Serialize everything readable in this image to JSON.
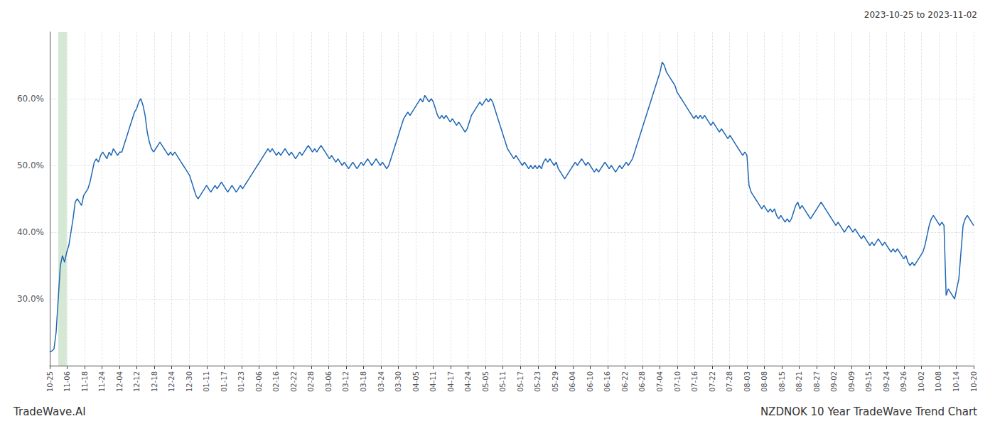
{
  "chart_data": {
    "type": "line",
    "title": "NZDNOK 10 Year TradeWave Trend Chart",
    "subtitle": "2023-10-25 to 2023-11-02",
    "annotations": [
      {
        "text": "TradeWave.AI"
      }
    ],
    "color": "#2068b4",
    "grid": true,
    "span": {
      "x": [
        4,
        8
      ],
      "color": "#d4e8d4"
    },
    "xlim": [
      0,
      436
    ],
    "xticks": [
      {
        "value": 0,
        "label": "10-25"
      },
      {
        "value": 8.2264,
        "label": "11-06"
      },
      {
        "value": 16.4528,
        "label": "11-18"
      },
      {
        "value": 24.6792,
        "label": "11-24"
      },
      {
        "value": 32.9057,
        "label": "12-04"
      },
      {
        "value": 41.1321,
        "label": "12-12"
      },
      {
        "value": 49.3585,
        "label": "12-18"
      },
      {
        "value": 57.5849,
        "label": "12-24"
      },
      {
        "value": 65.8113,
        "label": "12-30"
      },
      {
        "value": 74.0377,
        "label": "01-11"
      },
      {
        "value": 82.2642,
        "label": "01-17"
      },
      {
        "value": 90.4906,
        "label": "01-23"
      },
      {
        "value": 98.717,
        "label": "02-06"
      },
      {
        "value": 106.9434,
        "label": "02-16"
      },
      {
        "value": 115.1698,
        "label": "02-22"
      },
      {
        "value": 123.3962,
        "label": "02-28"
      },
      {
        "value": 131.6226,
        "label": "03-06"
      },
      {
        "value": 139.8491,
        "label": "03-12"
      },
      {
        "value": 148.0755,
        "label": "03-18"
      },
      {
        "value": 156.3019,
        "label": "03-24"
      },
      {
        "value": 164.5283,
        "label": "03-30"
      },
      {
        "value": 172.7547,
        "label": "04-05"
      },
      {
        "value": 180.9811,
        "label": "04-11"
      },
      {
        "value": 189.2075,
        "label": "04-17"
      },
      {
        "value": 197.434,
        "label": "04-24"
      },
      {
        "value": 205.6604,
        "label": "05-05"
      },
      {
        "value": 213.8868,
        "label": "05-11"
      },
      {
        "value": 222.1132,
        "label": "05-17"
      },
      {
        "value": 230.3396,
        "label": "05-23"
      },
      {
        "value": 238.566,
        "label": "05-29"
      },
      {
        "value": 246.7925,
        "label": "06-04"
      },
      {
        "value": 255.0189,
        "label": "06-10"
      },
      {
        "value": 263.2453,
        "label": "06-16"
      },
      {
        "value": 271.4717,
        "label": "06-22"
      },
      {
        "value": 279.6981,
        "label": "06-28"
      },
      {
        "value": 287.9245,
        "label": "07-04"
      },
      {
        "value": 296.1509,
        "label": "07-10"
      },
      {
        "value": 304.3774,
        "label": "07-16"
      },
      {
        "value": 312.6038,
        "label": "07-22"
      },
      {
        "value": 320.8302,
        "label": "07-28"
      },
      {
        "value": 329.0566,
        "label": "08-03"
      },
      {
        "value": 337.283,
        "label": "08-08"
      },
      {
        "value": 345.5094,
        "label": "08-15"
      },
      {
        "value": 353.7358,
        "label": "08-21"
      },
      {
        "value": 361.9623,
        "label": "08-27"
      },
      {
        "value": 370.1887,
        "label": "09-02"
      },
      {
        "value": 378.4151,
        "label": "09-09"
      },
      {
        "value": 386.6415,
        "label": "09-15"
      },
      {
        "value": 394.8679,
        "label": "09-24"
      },
      {
        "value": 403.0943,
        "label": "09-26"
      },
      {
        "value": 411.3208,
        "label": "10-02"
      },
      {
        "value": 419.5472,
        "label": "10-08"
      },
      {
        "value": 427.7736,
        "label": "10-14"
      },
      {
        "value": 436,
        "label": "10-20"
      }
    ],
    "ylim": [
      20.0,
      70.0
    ],
    "yticks": [
      {
        "value": 30.0,
        "label": "30.0%"
      },
      {
        "value": 40.0,
        "label": "40.0%"
      },
      {
        "value": 50.0,
        "label": "50.0%"
      },
      {
        "value": 60.0,
        "label": "60.0%"
      }
    ],
    "values": [
      22.0,
      22.2,
      22.5,
      25.0,
      30.0,
      35.0,
      36.5,
      35.5,
      37.0,
      38.0,
      40.0,
      42.0,
      44.5,
      45.0,
      44.5,
      44.0,
      45.5,
      46.0,
      46.5,
      47.5,
      49.0,
      50.5,
      51.0,
      50.5,
      51.5,
      52.0,
      51.5,
      51.0,
      52.0,
      51.5,
      52.5,
      52.0,
      51.5,
      52.0,
      52.0,
      53.0,
      54.0,
      55.0,
      56.0,
      57.0,
      58.0,
      58.5,
      59.5,
      60.0,
      59.0,
      57.5,
      55.0,
      53.5,
      52.5,
      52.0,
      52.5,
      53.0,
      53.5,
      53.0,
      52.5,
      52.0,
      51.5,
      52.0,
      51.5,
      52.0,
      51.5,
      51.0,
      50.5,
      50.0,
      49.5,
      49.0,
      48.5,
      47.5,
      46.5,
      45.5,
      45.0,
      45.5,
      46.0,
      46.5,
      47.0,
      46.5,
      46.0,
      46.5,
      47.0,
      46.5,
      47.0,
      47.5,
      47.0,
      46.5,
      46.0,
      46.5,
      47.0,
      46.5,
      46.0,
      46.5,
      47.0,
      46.5,
      47.0,
      47.5,
      48.0,
      48.5,
      49.0,
      49.5,
      50.0,
      50.5,
      51.0,
      51.5,
      52.0,
      52.5,
      52.0,
      52.5,
      52.0,
      51.5,
      52.0,
      51.5,
      52.0,
      52.5,
      52.0,
      51.5,
      52.0,
      51.5,
      51.0,
      51.5,
      52.0,
      51.5,
      52.0,
      52.5,
      53.0,
      52.5,
      52.0,
      52.5,
      52.0,
      52.5,
      53.0,
      52.5,
      52.0,
      51.5,
      51.0,
      51.5,
      51.0,
      50.5,
      51.0,
      50.5,
      50.0,
      50.5,
      50.0,
      49.5,
      50.0,
      50.5,
      50.0,
      49.5,
      50.0,
      50.5,
      50.0,
      50.5,
      51.0,
      50.5,
      50.0,
      50.5,
      51.0,
      50.5,
      50.0,
      50.5,
      50.0,
      49.5,
      50.0,
      51.0,
      52.0,
      53.0,
      54.0,
      55.0,
      56.0,
      57.0,
      57.5,
      58.0,
      57.5,
      58.0,
      58.5,
      59.0,
      59.5,
      60.0,
      59.5,
      60.5,
      60.0,
      59.5,
      60.0,
      59.5,
      58.5,
      57.5,
      57.0,
      57.5,
      57.0,
      57.5,
      57.0,
      56.5,
      57.0,
      56.5,
      56.0,
      56.5,
      56.0,
      55.5,
      55.0,
      55.5,
      56.5,
      57.5,
      58.0,
      58.5,
      59.0,
      59.5,
      59.0,
      59.5,
      60.0,
      59.5,
      60.0,
      59.5,
      58.5,
      57.5,
      56.5,
      55.5,
      54.5,
      53.5,
      52.5,
      52.0,
      51.5,
      51.0,
      51.5,
      51.0,
      50.5,
      50.0,
      50.5,
      50.0,
      49.5,
      50.0,
      49.5,
      50.0,
      49.5,
      50.0,
      49.5,
      50.5,
      51.0,
      50.5,
      51.0,
      50.5,
      50.0,
      50.5,
      49.5,
      49.0,
      48.5,
      48.0,
      48.5,
      49.0,
      49.5,
      50.0,
      50.5,
      50.0,
      50.5,
      51.0,
      50.5,
      50.0,
      50.5,
      50.0,
      49.5,
      49.0,
      49.5,
      49.0,
      49.5,
      50.0,
      50.5,
      50.0,
      49.5,
      50.0,
      49.5,
      49.0,
      49.5,
      50.0,
      49.5,
      50.0,
      50.5,
      50.0,
      50.5,
      51.0,
      52.0,
      53.0,
      54.0,
      55.0,
      56.0,
      57.0,
      58.0,
      59.0,
      60.0,
      61.0,
      62.0,
      63.0,
      64.0,
      65.5,
      65.0,
      64.0,
      63.5,
      63.0,
      62.5,
      62.0,
      61.0,
      60.5,
      60.0,
      59.5,
      59.0,
      58.5,
      58.0,
      57.5,
      57.0,
      57.5,
      57.0,
      57.5,
      57.0,
      57.5,
      57.0,
      56.5,
      56.0,
      56.5,
      56.0,
      55.5,
      55.0,
      55.5,
      55.0,
      54.5,
      54.0,
      54.5,
      54.0,
      53.5,
      53.0,
      52.5,
      52.0,
      51.5,
      52.0,
      51.5,
      47.0,
      46.0,
      45.5,
      45.0,
      44.5,
      44.0,
      43.5,
      44.0,
      43.5,
      43.0,
      43.5,
      43.0,
      43.5,
      42.5,
      42.0,
      42.5,
      42.0,
      41.5,
      42.0,
      41.5,
      42.0,
      43.0,
      44.0,
      44.5,
      43.5,
      44.0,
      43.5,
      43.0,
      42.5,
      42.0,
      42.5,
      43.0,
      43.5,
      44.0,
      44.5,
      44.0,
      43.5,
      43.0,
      42.5,
      42.0,
      41.5,
      41.0,
      41.5,
      41.0,
      40.5,
      40.0,
      40.5,
      41.0,
      40.5,
      40.0,
      40.5,
      40.0,
      39.5,
      39.0,
      39.5,
      39.0,
      38.5,
      38.0,
      38.5,
      38.0,
      38.5,
      39.0,
      38.5,
      38.0,
      38.5,
      38.0,
      37.5,
      37.0,
      37.5,
      37.0,
      37.5,
      37.0,
      36.5,
      36.0,
      36.5,
      35.5,
      35.0,
      35.5,
      35.0,
      35.5,
      36.0,
      36.5,
      37.0,
      38.0,
      39.5,
      41.0,
      42.0,
      42.5,
      42.0,
      41.5,
      41.0,
      41.5,
      41.0,
      30.5,
      31.5,
      31.0,
      30.5,
      30.0,
      31.5,
      33.0,
      37.0,
      41.0,
      42.0,
      42.5,
      42.0,
      41.5,
      41.0
    ]
  }
}
